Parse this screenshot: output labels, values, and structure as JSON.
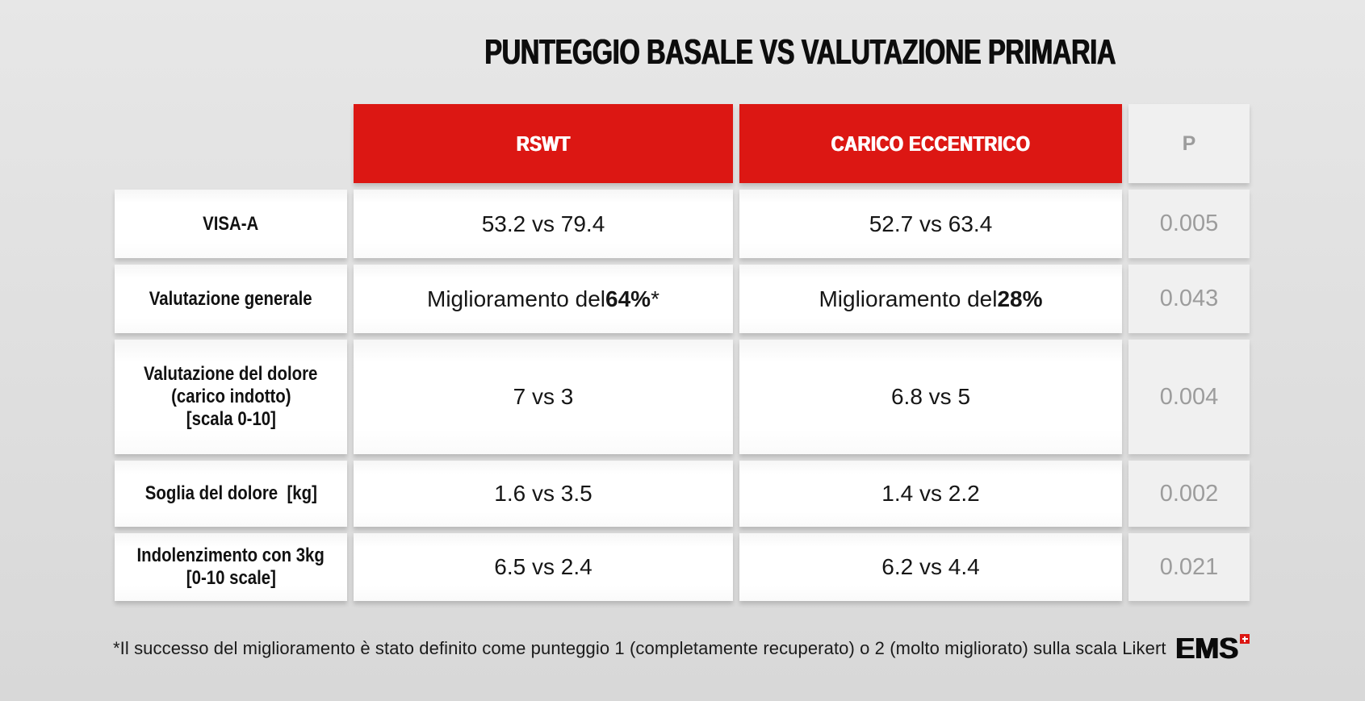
{
  "title": "PUNTEGGIO BASALE VS VALUTAZIONE PRIMARIA",
  "colors": {
    "accent_red": "#dc1713",
    "p_column_text": "#9c9c9c",
    "p_column_bg": "#f0f0f0",
    "cell_bg": "#ffffff",
    "page_bg": "#e0e0e0",
    "text": "#161616"
  },
  "table": {
    "header": {
      "rswt": "RSWT",
      "carico": "CARICO ECCENTRICO",
      "p": "P"
    },
    "rows": [
      {
        "label_lines": [
          "VISA-A"
        ],
        "rswt": {
          "pre": "53.2 vs 79.4",
          "bold": "",
          "post": ""
        },
        "carico": {
          "pre": "52.7 vs 63.4",
          "bold": "",
          "post": ""
        },
        "p": "0.005"
      },
      {
        "label_lines": [
          "Valutazione generale"
        ],
        "rswt": {
          "pre": "Miglioramento del ",
          "bold": "64%",
          "post": "*"
        },
        "carico": {
          "pre": "Miglioramento del ",
          "bold": "28%",
          "post": ""
        },
        "p": "0.043"
      },
      {
        "label_lines": [
          "Valutazione del dolore",
          "(carico indotto)",
          "[scala 0-10]"
        ],
        "rswt": {
          "pre": "7 vs 3",
          "bold": "",
          "post": ""
        },
        "carico": {
          "pre": "6.8 vs 5",
          "bold": "",
          "post": ""
        },
        "p": "0.004"
      },
      {
        "label_lines": [
          "Soglia del dolore  [kg]"
        ],
        "rswt": {
          "pre": "1.6 vs 3.5",
          "bold": "",
          "post": ""
        },
        "carico": {
          "pre": "1.4 vs 2.2",
          "bold": "",
          "post": ""
        },
        "p": "0.002"
      },
      {
        "label_lines": [
          "Indolenzimento con 3kg",
          "[0-10 scale]"
        ],
        "rswt": {
          "pre": "6.5 vs 2.4",
          "bold": "",
          "post": ""
        },
        "carico": {
          "pre": "6.2 vs 4.4",
          "bold": "",
          "post": ""
        },
        "p": "0.021"
      }
    ]
  },
  "footnote": "*Il successo del miglioramento è stato definito come punteggio 1 (completamente recuperato) o 2 (molto migliorato) sulla scala Likert",
  "logo": {
    "text": "EMS",
    "badge": "swiss-cross"
  },
  "chart_data": {
    "type": "table",
    "title": "PUNTEGGIO BASALE VS VALUTAZIONE PRIMARIA",
    "columns": [
      "",
      "RSWT",
      "CARICO ECCENTRICO",
      "P"
    ],
    "rows": [
      [
        "VISA-A",
        "53.2 vs 79.4",
        "52.7 vs 63.4",
        "0.005"
      ],
      [
        "Valutazione generale",
        "Miglioramento del 64%*",
        "Miglioramento del 28%",
        "0.043"
      ],
      [
        "Valutazione del dolore (carico indotto) [scala 0-10]",
        "7 vs 3",
        "6.8 vs 5",
        "0.004"
      ],
      [
        "Soglia del dolore [kg]",
        "1.6 vs 3.5",
        "1.4 vs 2.2",
        "0.002"
      ],
      [
        "Indolenzimento con 3kg [0-10 scale]",
        "6.5 vs 2.4",
        "6.2 vs 4.4",
        "0.021"
      ]
    ],
    "footnote": "*Il successo del miglioramento è stato definito come punteggio 1 (completamente recuperato) o 2 (molto migliorato) sulla scala Likert"
  }
}
